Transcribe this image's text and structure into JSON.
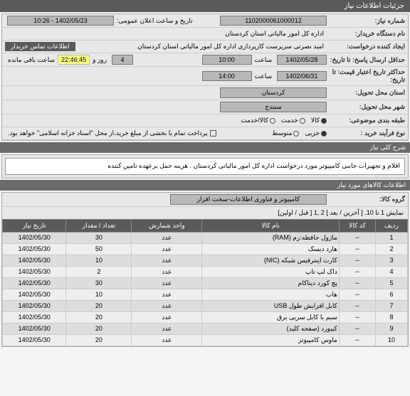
{
  "header": {
    "title": "جزئیات اطلاعات نیاز"
  },
  "form": {
    "reqNum": {
      "label": "شماره نیاز:",
      "value": "1102000061000012"
    },
    "pubDate": {
      "label": "تاریخ و ساعت اعلان عمومی:",
      "value": "1402/05/23 - 10:26"
    },
    "buyerOrg": {
      "label": "نام دستگاه خریدار:",
      "value": "اداره کل امور مالیاتی استان کردستان"
    },
    "creator": {
      "label": "ایجاد کننده درخواست:",
      "value": "امید نصرتی سرپرست کارپردازی اداره کل امور مالیاتی استان کردستان"
    },
    "contactBtn": "اطلاعات تماس خریدار",
    "deadline": {
      "label": "حداقل ارسال پاسخ: تا تاریخ:",
      "date": "1402/05/28",
      "timeLbl": "ساعت",
      "time": "10:00",
      "daysVal": "4",
      "daysLbl": "روز و",
      "remain": "22:46:45",
      "remainLbl": "ساعت باقی مانده"
    },
    "validCredit": {
      "label": "حداکثر تاریخ اعتبار قیمت: تا تاریخ:",
      "date": "1402/06/31",
      "timeLbl": "ساعت",
      "time": "14:00"
    },
    "province": {
      "label": "استان محل تحویل:",
      "value": "کردستان"
    },
    "city": {
      "label": "شهر محل تحویل:",
      "value": "سنندج"
    },
    "category": {
      "label": "طبقه بندی موضوعی:",
      "opts": [
        {
          "txt": "کالا",
          "on": true
        },
        {
          "txt": "خدمت",
          "on": false
        },
        {
          "txt": "کالا/خدمت",
          "on": false
        }
      ]
    },
    "process": {
      "label": "نوع فرآیند خرید :",
      "opts": [
        {
          "txt": "جزیی",
          "on": true
        },
        {
          "txt": "متوسط",
          "on": false
        }
      ],
      "chkLbl": "پرداخت تمام یا بخشی از مبلغ خرید،از محل \"اسناد خزانه اسلامی\" خواهد بود."
    }
  },
  "desc": {
    "title": "شرح کلی نیاز",
    "text": "اقلام و تجهیزات جانبی کامپیوتر مورد درخواست اداره کل امور مالیاتی کردستان . هزینه حمل برعهده تامین کننده"
  },
  "goods": {
    "title": "اطلاعات کالاهای مورد نیاز",
    "groupLbl": "گروه کالا:",
    "groupVal": "کامپیوتر و فناوری اطلاعات-سخت افزار",
    "navText": "نمایش 1 تا 10. [ آخرین / بعد ] 2 ,1 [ قبل / اولین]",
    "cols": [
      "ردیف",
      "کد کالا",
      "نام کالا",
      "واحد شمارش",
      "تعداد / مقدار",
      "تاریخ نیاز"
    ],
    "rows": [
      {
        "n": "1",
        "code": "--",
        "name": "ماژول حافظه:رم (RAM)",
        "unit": "عدد",
        "qty": "30",
        "date": "1402/05/30"
      },
      {
        "n": "2",
        "code": "--",
        "name": "هارد دیسک",
        "unit": "عدد",
        "qty": "50",
        "date": "1402/05/30"
      },
      {
        "n": "3",
        "code": "--",
        "name": "کارت اینترفیس شبکه (NIC)",
        "unit": "عدد",
        "qty": "10",
        "date": "1402/05/30"
      },
      {
        "n": "4",
        "code": "--",
        "name": "داک لپ تاپ",
        "unit": "عدد",
        "qty": "2",
        "date": "1402/05/30"
      },
      {
        "n": "5",
        "code": "--",
        "name": "پچ کورد دیتاکام",
        "unit": "عدد",
        "qty": "30",
        "date": "1402/05/30"
      },
      {
        "n": "6",
        "code": "--",
        "name": "هاب",
        "unit": "عدد",
        "qty": "10",
        "date": "1402/05/30"
      },
      {
        "n": "7",
        "code": "--",
        "name": "کابل افزایش طول USB",
        "unit": "عدد",
        "qty": "20",
        "date": "1402/05/30"
      },
      {
        "n": "8",
        "code": "--",
        "name": "سیم یا کابل سریی برق",
        "unit": "عدد",
        "qty": "20",
        "date": "1402/05/30"
      },
      {
        "n": "9",
        "code": "--",
        "name": "کیبورد (صفحه کلید)",
        "unit": "عدد",
        "qty": "20",
        "date": "1402/05/30"
      },
      {
        "n": "10",
        "code": "--",
        "name": "ماوس کامپیوتر",
        "unit": "عدد",
        "qty": "20",
        "date": "1402/05/30"
      }
    ]
  }
}
